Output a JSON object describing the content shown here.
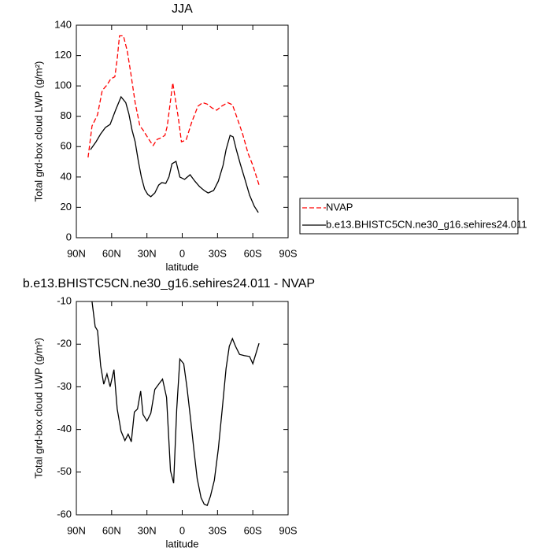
{
  "chart_data": [
    {
      "type": "line",
      "title": "JJA",
      "xlabel": "latitude",
      "ylabel": "Total grd-box cloud LWP (g/m²)",
      "xlim": [
        90,
        -90
      ],
      "xticks": [
        {
          "value": 90,
          "label": "90N"
        },
        {
          "value": 60,
          "label": "60N"
        },
        {
          "value": 30,
          "label": "30N"
        },
        0,
        {
          "value": -30,
          "label": "30S"
        },
        {
          "value": -60,
          "label": "60S"
        },
        {
          "value": -90,
          "label": "90S"
        }
      ],
      "ylim": [
        0,
        140
      ],
      "yticks": [
        0,
        20,
        40,
        60,
        80,
        100,
        120,
        140
      ],
      "legend": "right",
      "series": [
        {
          "name": "NVAP",
          "color": "#ff0000",
          "dashed": true,
          "x": [
            80,
            76.7,
            72,
            68,
            64,
            60.7,
            57.3,
            55.3,
            53.3,
            50,
            46.7,
            44,
            40,
            36,
            33.3,
            28,
            24.7,
            21.3,
            18,
            14.7,
            12.7,
            8,
            3.3,
            0.7,
            -3.3,
            -8,
            -13.3,
            -17.3,
            -21.3,
            -25.3,
            -29.3,
            -33.3,
            -38.7,
            -42.7,
            -46.7,
            -51.3,
            -56,
            -60,
            -65.3
          ],
          "values": [
            52.9,
            73.6,
            81,
            97,
            100.6,
            104.7,
            106,
            117.7,
            133,
            133,
            122.9,
            110,
            89,
            73.6,
            71,
            64.3,
            60.7,
            64.8,
            65.8,
            67.4,
            73.6,
            102,
            78.8,
            63.2,
            64.3,
            76,
            86.6,
            89,
            88,
            85.5,
            84,
            86.6,
            89,
            87.6,
            78.8,
            68.4,
            55.5,
            47.7,
            34.7
          ]
        },
        {
          "name": "b.e13.BHISTC5CN.ne30_g16.sehires24.011",
          "color": "#000000",
          "dashed": false,
          "x": [
            78,
            73.3,
            69.3,
            65.3,
            61.3,
            56.7,
            52,
            48,
            45.3,
            42.7,
            40,
            37.3,
            34.7,
            32,
            29.3,
            26.7,
            23.3,
            20,
            17.3,
            14,
            11.3,
            8.7,
            5.3,
            2,
            -2,
            -6.7,
            -10.7,
            -14.7,
            -18.7,
            -22,
            -26.7,
            -30.7,
            -34.7,
            -37.3,
            -40.7,
            -43.3,
            -46,
            -49.3,
            -53.3,
            -57.3,
            -61.3,
            -64.7
          ],
          "values": [
            58,
            63.2,
            68.4,
            72.6,
            74.6,
            84,
            92.8,
            89,
            81.4,
            71,
            63.2,
            50.3,
            40,
            32,
            28.5,
            27,
            29.5,
            34.7,
            36.3,
            35.8,
            40,
            48.7,
            50.3,
            40,
            38.4,
            41.5,
            37.3,
            33.7,
            31.1,
            29.5,
            31.1,
            37.3,
            47.7,
            58,
            67.4,
            66.4,
            58,
            48.7,
            38.4,
            28,
            20.7,
            16.6
          ]
        }
      ]
    },
    {
      "type": "line",
      "title": "b.e13.BHISTC5CN.ne30_g16.sehires24.011 - NVAP",
      "xlabel": "latitude",
      "ylabel": "Total grd-box cloud LWP (g/m²)",
      "xlim": [
        90,
        -90
      ],
      "xticks": [
        {
          "value": 90,
          "label": "90N"
        },
        {
          "value": 60,
          "label": "60N"
        },
        {
          "value": 30,
          "label": "30N"
        },
        0,
        {
          "value": -30,
          "label": "30S"
        },
        {
          "value": -60,
          "label": "60S"
        },
        {
          "value": -90,
          "label": "90S"
        }
      ],
      "ylim": [
        -60,
        -10
      ],
      "yticks": [
        -60,
        -50,
        -40,
        -30,
        -20,
        -10
      ],
      "series": [
        {
          "color": "#000000",
          "dashed": false,
          "x": [
            76.7,
            74,
            72,
            69.3,
            66.7,
            64,
            61.3,
            58,
            55.3,
            52,
            48.7,
            46,
            43.3,
            40.7,
            38,
            35.3,
            33.3,
            30,
            26.7,
            23.3,
            20,
            16.7,
            13.3,
            10,
            7.3,
            4.7,
            2,
            -1.3,
            -4,
            -7.3,
            -10,
            -12.7,
            -16,
            -18.7,
            -21.3,
            -24,
            -27.3,
            -30.7,
            -34,
            -37.3,
            -40,
            -42.7,
            -45.3,
            -48.7,
            -52.7,
            -57.3,
            -60,
            -65.3
          ],
          "values": [
            -10,
            -15.9,
            -16.8,
            -25.1,
            -29.4,
            -27,
            -30,
            -26,
            -35.2,
            -40.4,
            -42.6,
            -41.1,
            -42.9,
            -35.9,
            -35.2,
            -31,
            -36.5,
            -38,
            -36.2,
            -30.6,
            -29.4,
            -28.2,
            -32.5,
            -49.7,
            -52.6,
            -35.3,
            -23.5,
            -24.6,
            -30.1,
            -38,
            -44.9,
            -51.5,
            -56,
            -57.5,
            -57.8,
            -55.6,
            -51.9,
            -44.5,
            -35.3,
            -25.7,
            -20.5,
            -18.7,
            -20.5,
            -22.4,
            -22.7,
            -22.9,
            -24.6,
            -19.8
          ]
        }
      ]
    }
  ]
}
